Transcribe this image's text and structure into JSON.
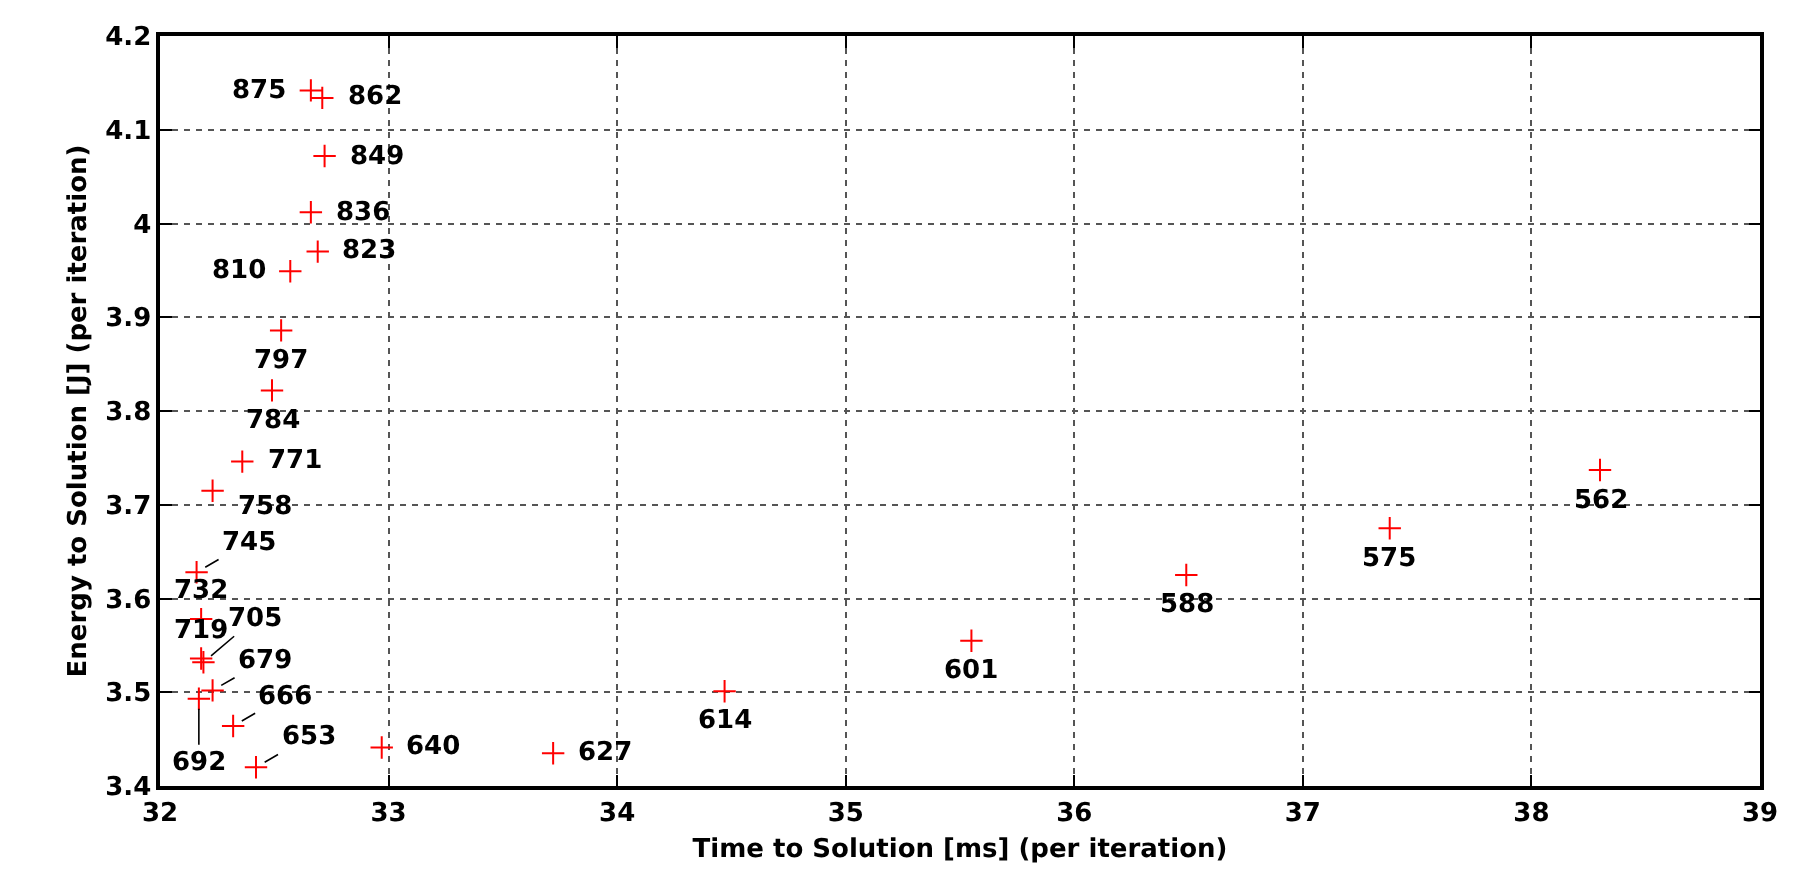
{
  "chart_data": {
    "type": "scatter",
    "xlabel": "Time to Solution [ms] (per iteration)",
    "ylabel": "Energy to Solution [J] (per iteration)",
    "xlim": [
      32,
      39
    ],
    "xticks": [
      32,
      33,
      34,
      35,
      36,
      37,
      38,
      39
    ],
    "ylim": [
      3.4,
      4.2
    ],
    "yticks": [
      3.4,
      3.5,
      3.6,
      3.7,
      3.8,
      3.9,
      4,
      4.1,
      4.2
    ],
    "grid": true,
    "marker": "cross",
    "series": [
      {
        "color": "#ff0000",
        "x": [
          38.3,
          37.38,
          36.49,
          35.55,
          34.47,
          33.72,
          32.97,
          32.42,
          32.32,
          32.23,
          32.17,
          32.19,
          32.18,
          32.18,
          32.16,
          32.23,
          32.36,
          32.49,
          32.53,
          32.57,
          32.69,
          32.66,
          32.72,
          32.71,
          32.66
        ],
        "values": [
          3.737,
          3.675,
          3.625,
          3.555,
          3.501,
          3.435,
          3.441,
          3.42,
          3.464,
          3.502,
          3.493,
          3.532,
          3.536,
          3.578,
          3.628,
          3.715,
          3.746,
          3.822,
          3.886,
          3.949,
          3.97,
          4.012,
          4.072,
          4.134,
          4.142
        ]
      }
    ],
    "annotations": [
      {
        "text": "562",
        "x": 38.3,
        "y": 3.737
      },
      {
        "text": "575",
        "x": 37.38,
        "y": 3.675
      },
      {
        "text": "588",
        "x": 36.49,
        "y": 3.625
      },
      {
        "text": "601",
        "x": 35.55,
        "y": 3.555
      },
      {
        "text": "614",
        "x": 34.47,
        "y": 3.501
      },
      {
        "text": "627",
        "x": 33.72,
        "y": 3.435
      },
      {
        "text": "640",
        "x": 32.97,
        "y": 3.441
      },
      {
        "text": "653",
        "x": 32.42,
        "y": 3.42
      },
      {
        "text": "666",
        "x": 32.32,
        "y": 3.464
      },
      {
        "text": "679",
        "x": 32.23,
        "y": 3.502
      },
      {
        "text": "692",
        "x": 32.17,
        "y": 3.493
      },
      {
        "text": "705",
        "x": 32.19,
        "y": 3.532
      },
      {
        "text": "719",
        "x": 32.18,
        "y": 3.536
      },
      {
        "text": "732",
        "x": 32.18,
        "y": 3.578
      },
      {
        "text": "745",
        "x": 32.16,
        "y": 3.628
      },
      {
        "text": "758",
        "x": 32.23,
        "y": 3.715
      },
      {
        "text": "771",
        "x": 32.36,
        "y": 3.746
      },
      {
        "text": "784",
        "x": 32.49,
        "y": 3.822
      },
      {
        "text": "797",
        "x": 32.53,
        "y": 3.886
      },
      {
        "text": "810",
        "x": 32.57,
        "y": 3.949
      },
      {
        "text": "823",
        "x": 32.69,
        "y": 3.97
      },
      {
        "text": "836",
        "x": 32.66,
        "y": 4.012
      },
      {
        "text": "849",
        "x": 32.72,
        "y": 4.072
      },
      {
        "text": "862",
        "x": 32.71,
        "y": 4.134
      },
      {
        "text": "875",
        "x": 32.66,
        "y": 4.142
      }
    ]
  }
}
